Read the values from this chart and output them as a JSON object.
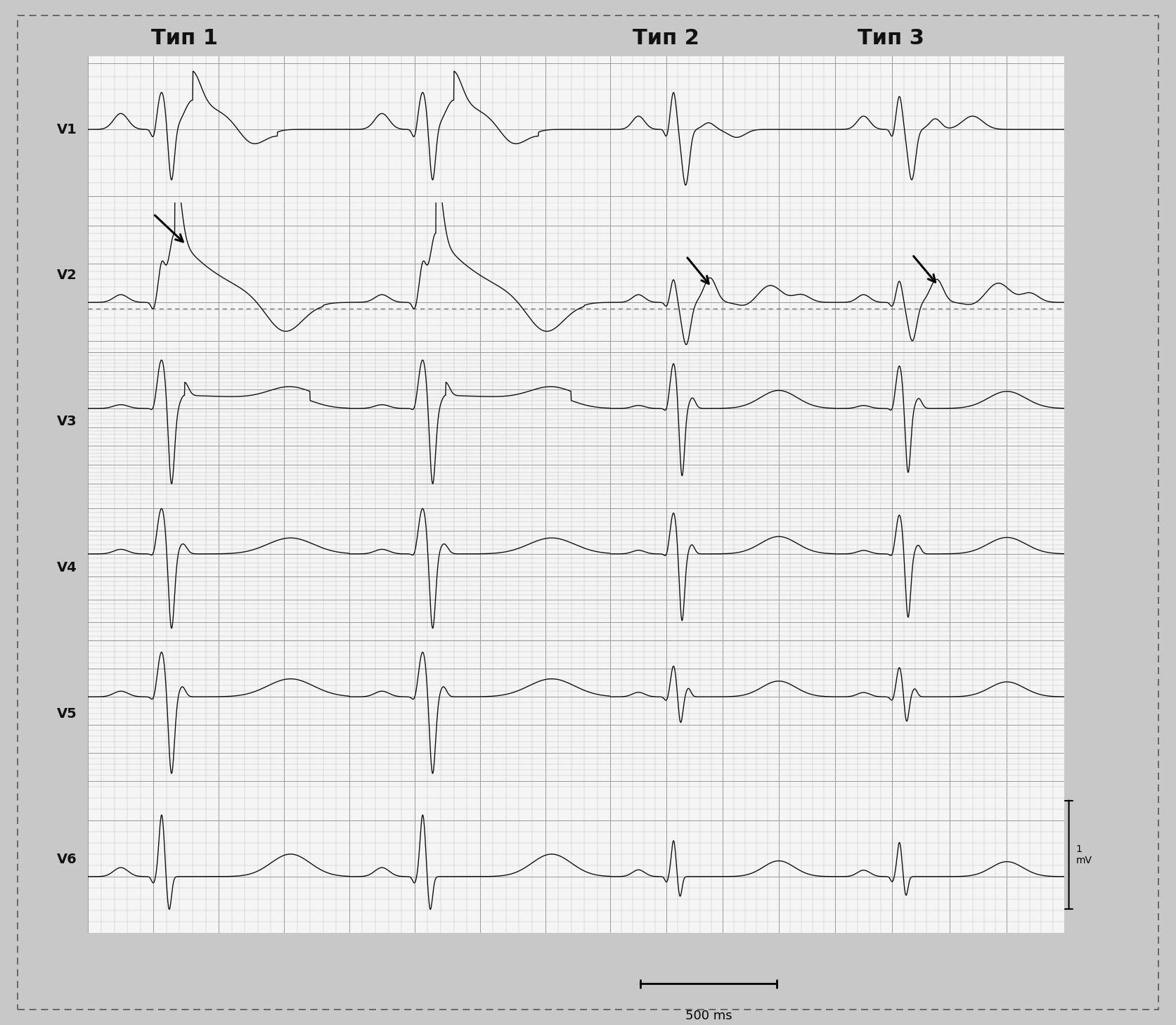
{
  "title1": "Тип 1",
  "title2": "Тип 2",
  "title3": "Тип 3",
  "leads": [
    "V1",
    "V2",
    "V3",
    "V4",
    "V5",
    "V6"
  ],
  "scale_label": "1\nmV",
  "time_label": "500 ms",
  "outer_bg": "#c8c8c8",
  "paper_bg": "#f5f5f5",
  "grid_minor_color": "#bbbbbb",
  "grid_major_color": "#999999",
  "ecg_color": "#111111",
  "border_color": "#555555",
  "text_color": "#111111",
  "title_fontsize": 22,
  "lead_fontsize": 14
}
